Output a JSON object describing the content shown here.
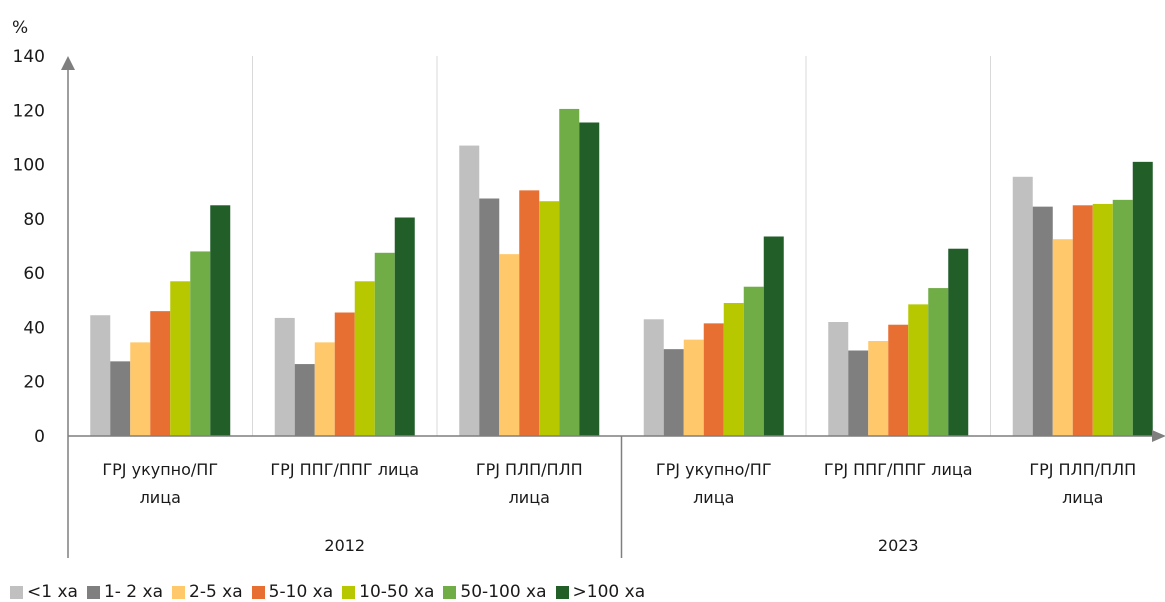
{
  "chart_data": {
    "type": "bar",
    "ylabel": "%",
    "ylim": [
      0,
      140
    ],
    "yticks": [
      0,
      20,
      40,
      60,
      80,
      100,
      120,
      140
    ],
    "grid": "vertical separators only",
    "legend_position": "bottom-left",
    "groups": [
      "2012",
      "2023"
    ],
    "categories": [
      {
        "line1": "ГРЈ укупно/ПГ",
        "line2": "лица",
        "group": "2012"
      },
      {
        "line1": "ГРЈ ППГ/ППГ лица",
        "line2": "",
        "group": "2012"
      },
      {
        "line1": "ГРЈ ПЛП/ПЛП",
        "line2": "лица",
        "group": "2012"
      },
      {
        "line1": "ГРЈ укупно/ПГ",
        "line2": "лица",
        "group": "2023"
      },
      {
        "line1": "ГРЈ ППГ/ППГ лица",
        "line2": "",
        "group": "2023"
      },
      {
        "line1": "ГРЈ ПЛП/ПЛП",
        "line2": "лица",
        "group": "2023"
      }
    ],
    "series": [
      {
        "name": "<1 ха",
        "color": "#c0c0c0",
        "values": [
          44.5,
          43.5,
          107,
          43,
          42,
          95.5
        ]
      },
      {
        "name": "1- 2 ха",
        "color": "#7f7f7f",
        "values": [
          27.5,
          26.5,
          87.5,
          32,
          31.5,
          84.5
        ]
      },
      {
        "name": "2-5 ха",
        "color": "#ffc86b",
        "values": [
          34.5,
          34.5,
          67,
          35.5,
          35,
          72.5
        ]
      },
      {
        "name": "5-10 ха",
        "color": "#e86f32",
        "values": [
          46,
          45.5,
          90.5,
          41.5,
          41,
          85
        ]
      },
      {
        "name": "10-50 ха",
        "color": "#b7c800",
        "values": [
          57,
          57,
          86.5,
          49,
          48.5,
          85.5
        ]
      },
      {
        "name": "50-100 ха",
        "color": "#70ad47",
        "values": [
          68,
          67.5,
          120.5,
          55,
          54.5,
          87
        ]
      },
      {
        "name": ">100 ха",
        "color": "#215e28",
        "values": [
          85,
          80.5,
          115.5,
          73.5,
          69,
          101
        ]
      }
    ]
  }
}
